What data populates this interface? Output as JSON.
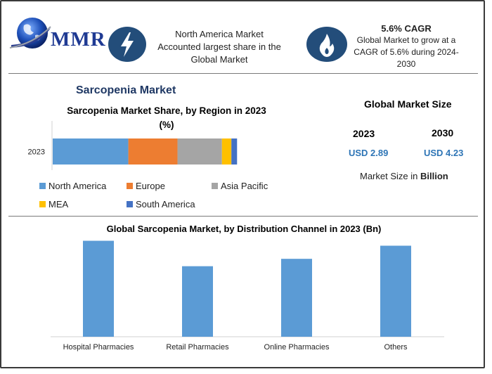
{
  "brand": {
    "name": "MMR"
  },
  "header": {
    "info1": [
      "North America Market",
      "Accounted largest share in the",
      "Global Market"
    ],
    "info2_title": "5.6% CAGR",
    "info2": [
      "Global Market to grow at a",
      "CAGR of 5.6% during 2024-",
      "2030"
    ],
    "icon1": "lightning-icon",
    "icon2": "flame-icon"
  },
  "report_title": "Sarcopenia Market",
  "market_size": {
    "title": "Global Market Size",
    "year1": "2023",
    "value1": "USD 2.89",
    "year2": "2030",
    "value2": "USD 4.23",
    "note_prefix": "Market Size in ",
    "note_unit": "Billion"
  },
  "colors": {
    "north_america": "#5b9bd5",
    "europe": "#ed7d31",
    "asia_pacific": "#a5a5a5",
    "mea": "#ffc000",
    "south_america": "#4472c4",
    "bar_blue": "#5b9bd5",
    "brand": "#1f3a93"
  },
  "chart_data": [
    {
      "type": "bar",
      "orientation": "horizontal",
      "stacked": true,
      "title_line1": "Sarcopenia Market Share, by Region in 2023",
      "title_line2": "(%)",
      "categories": [
        "2023"
      ],
      "series": [
        {
          "name": "North America",
          "values": [
            40
          ]
        },
        {
          "name": "Europe",
          "values": [
            26
          ]
        },
        {
          "name": "Asia Pacific",
          "values": [
            23.5
          ]
        },
        {
          "name": "MEA",
          "values": [
            5
          ]
        },
        {
          "name": "South America",
          "values": [
            3
          ]
        }
      ],
      "legend_position": "bottom"
    },
    {
      "type": "bar",
      "title": "Global Sarcopenia Market, by Distribution Channel in 2023 (Bn)",
      "categories": [
        "Hospital Pharmacies",
        "Retail Pharmacies",
        "Online Pharmacies",
        "Others"
      ],
      "values": [
        1.17,
        0.86,
        0.95,
        1.11
      ],
      "ylim": [
        0,
        1.2
      ],
      "grid": false
    }
  ]
}
